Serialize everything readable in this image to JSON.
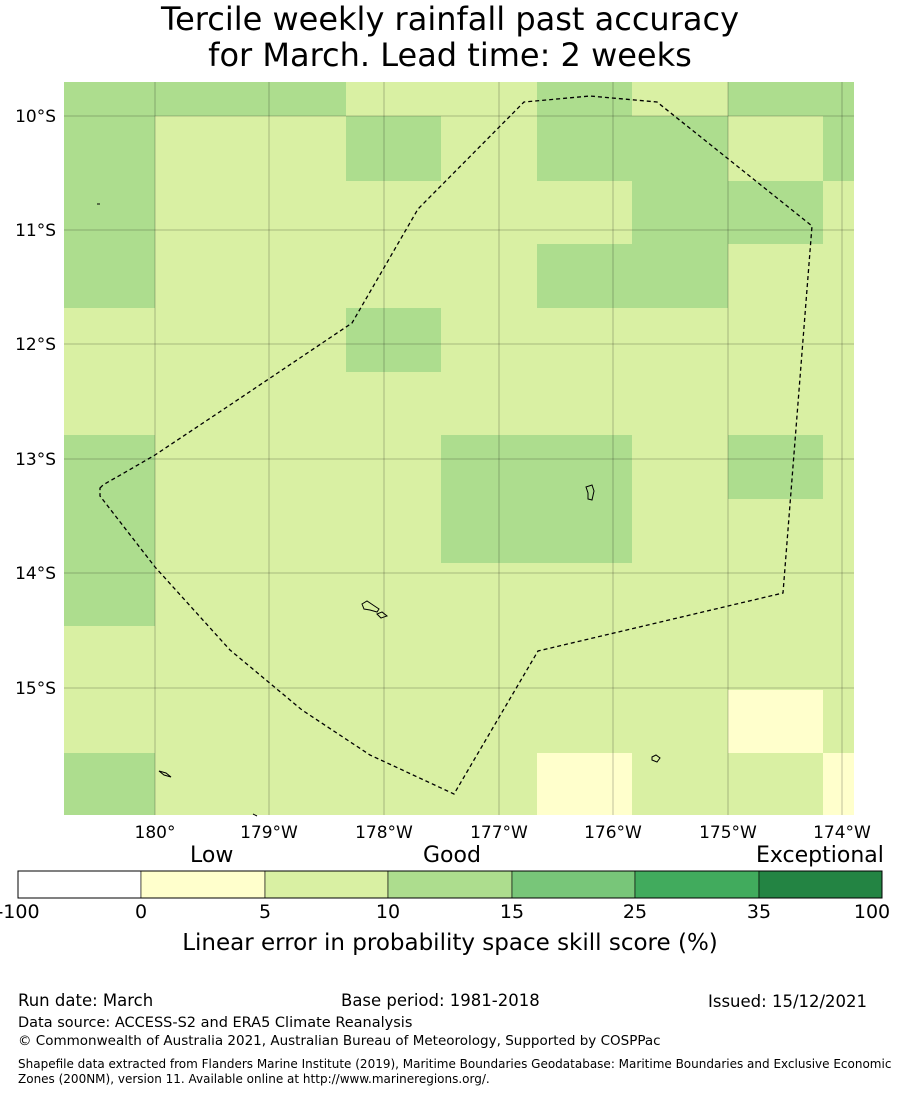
{
  "title_line1": "Tercile weekly rainfall past accuracy",
  "title_line2": "for March. Lead time: 2 weeks",
  "map": {
    "lon_ticks": [
      "180°",
      "179°W",
      "178°W",
      "177°W",
      "176°W",
      "175°W",
      "174°W"
    ],
    "lat_ticks": [
      "10°S",
      "11°S",
      "12°S",
      "13°S",
      "14°S",
      "15°S"
    ],
    "cell_colors": {
      "A": "#ffffcc",
      "B": "#d9f0a3",
      "C": "#addd8e"
    },
    "grid_rows": [
      "CCCBBBCCBBCCCC",
      "CBBBCBBBBCCCBC",
      "CBBBCBBBBBCCCC",
      "CBBBBBBBBCCBBB",
      "CBBBBBBBBCCBBB",
      "BBBBBBBBBBBBBB",
      "BBBBBBBBBBBBBB",
      "CBBBBBCCCCBBCB",
      "CBBBBBCCCCBBBB",
      "CBBBBBBBBBBBBB",
      "BBBBBBBBBBBBBB",
      "BBBBBBBBBBBBAB",
      "CBBBBBBBAABBBA"
    ],
    "boundary_color": "#000000",
    "coast_color": "#000000"
  },
  "colorbar": {
    "words": [
      "Low",
      "Good",
      "Exceptional"
    ],
    "ticks": [
      "-100",
      "0",
      "5",
      "10",
      "15",
      "25",
      "35",
      "100"
    ],
    "colors": [
      "#ffffff",
      "#ffffcc",
      "#d9f0a3",
      "#addd8e",
      "#78c679",
      "#41ab5d",
      "#238443"
    ],
    "label": "Linear error in probability space skill score (%)"
  },
  "footer": {
    "run_date": "Run date: March",
    "base_period": "Base period: 1981-2018",
    "issued": "Issued: 15/12/2021",
    "data_source": "Data source: ACCESS-S2 and ERA5 Climate Reanalysis",
    "copyright": "© Commonwealth of Australia 2021, Australian Bureau of Meteorology, Supported by COSPPac",
    "shapefile": "Shapefile data extracted from Flanders Marine Institute (2019), Maritime Boundaries Geodatabase: Maritime Boundaries and Exclusive Economic Zones (200NM), version 11. Available online at http://www.marineregions.org/."
  }
}
